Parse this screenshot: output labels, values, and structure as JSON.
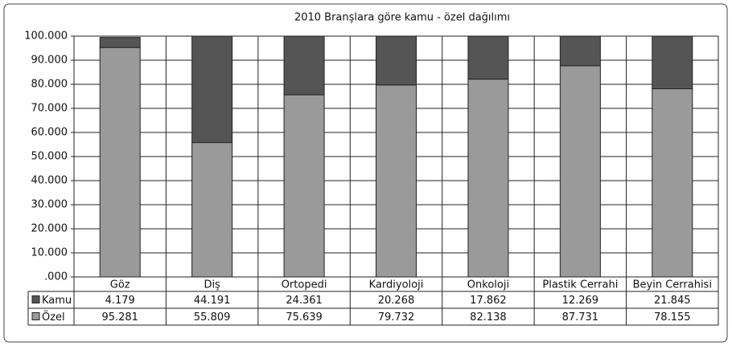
{
  "chart_data": {
    "type": "stacked_bar",
    "title": "2010 Branşlara göre kamu - özel dağılımı",
    "categories": [
      "Göz",
      "Diş",
      "Ortopedi",
      "Kardiyoloji",
      "Onkoloji",
      "Plastik Cerrahi",
      "Beyin Cerrahisi"
    ],
    "series": [
      {
        "name": "Kamu",
        "color": "#555555",
        "values": [
          4.179,
          44.191,
          24.361,
          20.268,
          17.862,
          12.269,
          21.845
        ]
      },
      {
        "name": "Özel",
        "color": "#9a9a9a",
        "values": [
          95.281,
          55.809,
          75.639,
          79.732,
          82.138,
          87.731,
          78.155
        ]
      }
    ],
    "ylim": [
      0,
      100
    ],
    "yticks": [
      {
        "value": 0,
        "label": ".000"
      },
      {
        "value": 10,
        "label": "10.000"
      },
      {
        "value": 20,
        "label": "20.000"
      },
      {
        "value": 30,
        "label": "30.000"
      },
      {
        "value": 40,
        "label": "40.000"
      },
      {
        "value": 50,
        "label": "50.000"
      },
      {
        "value": 60,
        "label": "60.000"
      },
      {
        "value": 70,
        "label": "70.000"
      },
      {
        "value": 80,
        "label": "80.000"
      },
      {
        "value": 90,
        "label": "90.000"
      },
      {
        "value": 100,
        "label": "100.000"
      }
    ],
    "grid": true
  }
}
